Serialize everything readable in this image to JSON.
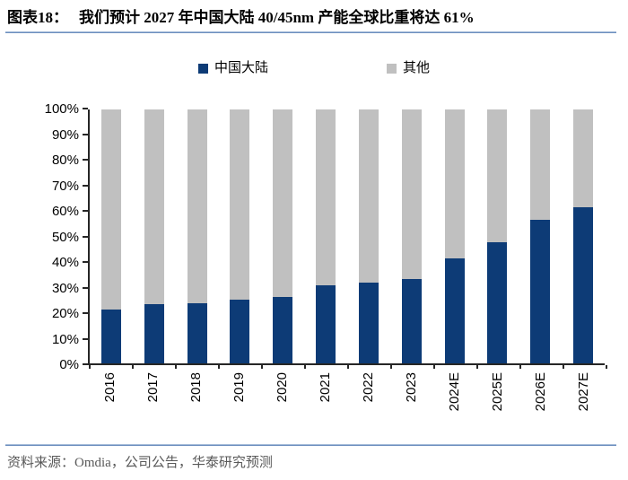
{
  "header": {
    "title_prefix": "图表18：",
    "title": "我们预计 2027 年中国大陆 40/45nm 产能全球比重将达 61%"
  },
  "legend": [
    {
      "label": "中国大陆",
      "color": "#0D3B76"
    },
    {
      "label": "其他",
      "color": "#C0C0C0"
    }
  ],
  "chart_data": {
    "type": "bar",
    "stacked": true,
    "stacked_to_100_percent": true,
    "title": "我们预计 2027 年中国大陆 40/45nm 产能全球比重将达 61%",
    "categories": [
      "2016",
      "2017",
      "2018",
      "2019",
      "2020",
      "2021",
      "2022",
      "2023",
      "2024E",
      "2025E",
      "2026E",
      "2027E"
    ],
    "series": [
      {
        "name": "中国大陆",
        "color": "#0D3B76",
        "values": [
          21,
          23,
          23.5,
          25,
          26,
          30.5,
          31.5,
          33,
          41,
          47.5,
          56,
          61
        ]
      },
      {
        "name": "其他",
        "color": "#C0C0C0",
        "values": [
          79,
          77,
          76.5,
          75,
          74,
          69.5,
          68.5,
          67,
          59,
          52.5,
          44,
          39
        ]
      }
    ],
    "xlabel": "",
    "ylabel": "",
    "ylim": [
      0,
      100
    ],
    "yticks": [
      "0%",
      "10%",
      "20%",
      "30%",
      "40%",
      "50%",
      "60%",
      "70%",
      "80%",
      "90%",
      "100%"
    ],
    "grid": false,
    "legend_position": "top",
    "x_tick_rotation_degrees": 90
  },
  "footer": {
    "source": "资料来源：Omdia，公司公告，华泰研究预测"
  },
  "colors": {
    "china_blue": "#0D3B76",
    "others_gray": "#C0C0C0",
    "rule_blue": "#6D8FBF",
    "axis": "#262626",
    "source_text": "#595959"
  }
}
